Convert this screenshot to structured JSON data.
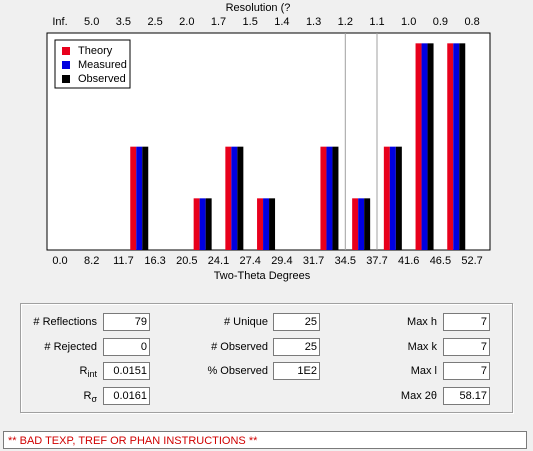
{
  "chart_data": {
    "type": "histogram",
    "top_axis_title": "Resolution (?",
    "top_labels": [
      "Inf.",
      "5.0",
      "3.5",
      "2.5",
      "2.0",
      "1.7",
      "1.5",
      "1.4",
      "1.3",
      "1.2",
      "1.1",
      "1.0",
      "0.9",
      "0.8"
    ],
    "x_label": "Two-Theta Degrees",
    "bins": [
      {
        "value": 0,
        "label": "0.0"
      },
      8.2,
      11.7,
      16.3,
      20.5,
      24.1,
      27.4,
      29.4,
      31.7,
      34.5,
      37.7,
      41.6,
      46.5,
      52.7
    ],
    "series": [
      {
        "name": "Theory",
        "color": "#e8001c",
        "values": [
          0,
          0,
          50,
          0,
          25,
          50,
          25,
          0,
          50,
          25,
          50,
          100,
          100
        ]
      },
      {
        "name": "Measured",
        "color": "#0000e0",
        "values": [
          0,
          0,
          50,
          0,
          25,
          50,
          25,
          0,
          50,
          25,
          50,
          100,
          100
        ]
      },
      {
        "name": "Observed",
        "color": "#000000",
        "values": [
          0,
          0,
          50,
          0,
          25,
          50,
          25,
          0,
          50,
          25,
          50,
          100,
          100
        ]
      }
    ],
    "ylim": [
      0,
      105
    ],
    "legend": "top-left"
  },
  "fields": [
    [
      {
        "label": "# Reflections",
        "value": "79"
      },
      {
        "label": "# Rejected",
        "value": "0"
      },
      {
        "label": "R",
        "label_sub": "int",
        "value": "0.0151"
      },
      {
        "label": "R",
        "label_sub": "σ",
        "value": "0.0161"
      }
    ],
    [
      {
        "label": "# Unique",
        "value": "25"
      },
      {
        "label": "# Observed",
        "value": "25"
      },
      {
        "label": "% Observed",
        "value": "1E2"
      }
    ],
    [
      {
        "label": "Max h",
        "value": "7"
      },
      {
        "label": "Max k",
        "value": "7"
      },
      {
        "label": "Max l",
        "value": "7"
      },
      {
        "label": "Max 2θ",
        "value": "58.17"
      }
    ]
  ],
  "status": "** BAD TEXP, TREF OR PHAN INSTRUCTIONS **"
}
